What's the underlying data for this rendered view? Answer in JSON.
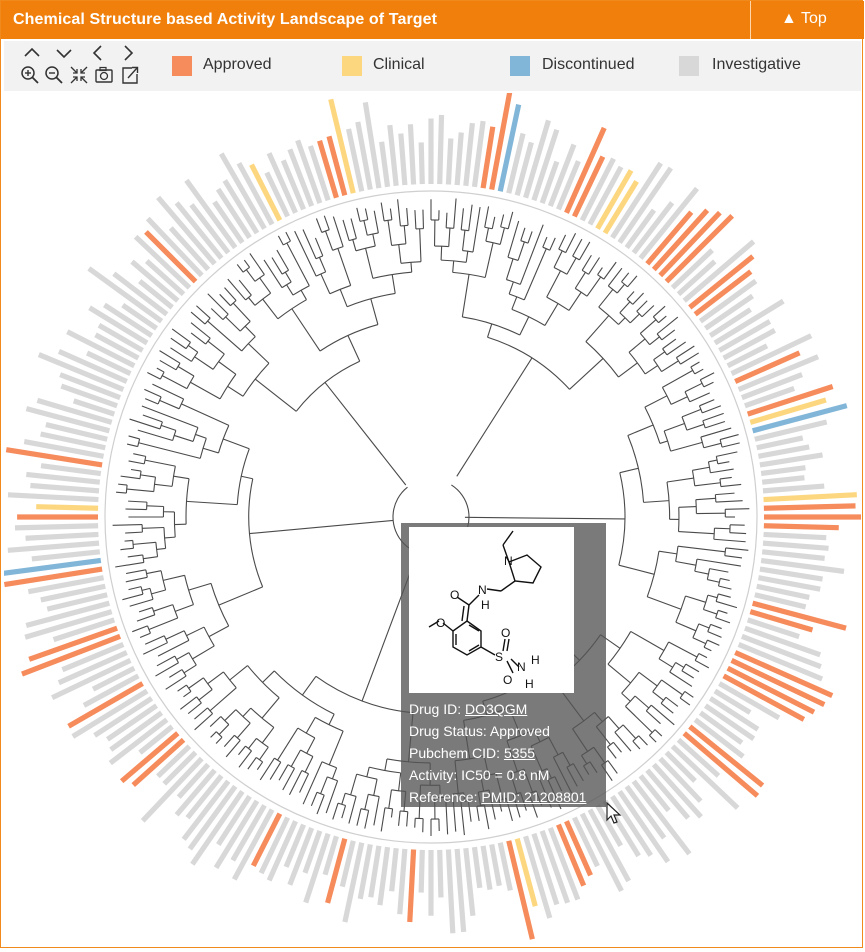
{
  "header": {
    "title": "Chemical Structure based Activity Landscape of Target",
    "top_label": "Top"
  },
  "toolbar": {
    "tools": [
      "chevron-up-icon",
      "chevron-down-icon",
      "chevron-left-icon",
      "chevron-right-icon",
      "zoom-in-icon",
      "zoom-out-icon",
      "compress-icon",
      "camera-icon",
      "export-icon"
    ]
  },
  "legend": [
    {
      "label": "Approved",
      "color": "#f68b5c"
    },
    {
      "label": "Clinical",
      "color": "#fcd77f"
    },
    {
      "label": "Discontinued",
      "color": "#82b6d8"
    },
    {
      "label": "Investigative",
      "color": "#d8d8d8"
    }
  ],
  "tooltip": {
    "drug_id_label": "Drug ID:",
    "drug_id": "DO3QGM",
    "status": "Drug Status: Approved",
    "pubchem_label": "Pubchem CID:",
    "pubchem_cid": "5355",
    "activity": "Activity: IC50 = 0.8 nM",
    "reference_label": "Reference:",
    "pmid": "PMID: 21208801",
    "struct_labels": {
      "n1": "N",
      "n2": "N",
      "h1": "H",
      "o1": "O",
      "o2": "O",
      "s": "S",
      "so1": "O",
      "so2": "O",
      "n3": "N",
      "h2": "H",
      "h3": "H"
    }
  },
  "chart_data": {
    "type": "radial-tree",
    "leaf_count": 240,
    "status_colors": {
      "approved": "#f68b5c",
      "clinical": "#fcd77f",
      "discontinued": "#82b6d8",
      "investigative": "#d8d8d8"
    }
  }
}
